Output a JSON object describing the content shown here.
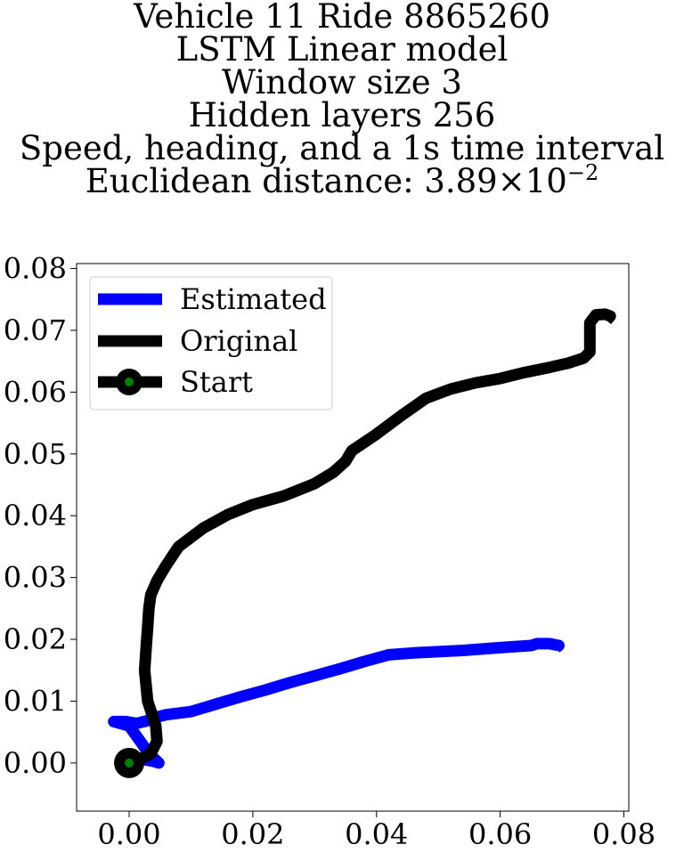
{
  "chart_data": {
    "type": "line",
    "title_lines": [
      "Vehicle 11 Ride 8865260",
      "LSTM Linear model",
      "Window size 3",
      "Hidden layers 256",
      "Speed, heading, and a 1s time interval"
    ],
    "title_distance": {
      "prefix": "Euclidean distance: ",
      "mantissa": "3.89",
      "times": "×",
      "base": "10",
      "exponent": "−2"
    },
    "xlabel": "",
    "ylabel": "",
    "xlim": [
      -0.0085,
      0.0808
    ],
    "ylim": [
      -0.0078,
      0.0808
    ],
    "xticks": [
      0.0,
      0.02,
      0.04,
      0.06,
      0.08
    ],
    "xtick_labels": [
      "0.00",
      "0.02",
      "0.04",
      "0.06",
      "0.08"
    ],
    "yticks": [
      0.0,
      0.01,
      0.02,
      0.03,
      0.04,
      0.05,
      0.06,
      0.07,
      0.08
    ],
    "ytick_labels": [
      "0.00",
      "0.01",
      "0.02",
      "0.03",
      "0.04",
      "0.05",
      "0.06",
      "0.07",
      "0.08"
    ],
    "grid": false,
    "legend_position": "top-left",
    "series": [
      {
        "name": "Estimated",
        "color": "#0000ff",
        "x": [
          0.0,
          0.0015,
          0.0038,
          0.0048,
          0.0032,
          0.0018,
          0.0,
          -0.0025,
          -0.0005,
          0.0012,
          0.0028,
          0.004,
          0.006,
          0.01,
          0.014,
          0.018,
          0.022,
          0.026,
          0.03,
          0.034,
          0.038,
          0.042,
          0.046,
          0.05,
          0.054,
          0.058,
          0.062,
          0.065,
          0.066,
          0.068,
          0.0695,
          0.069
        ],
        "y": [
          0.0,
          0.0007,
          0.0003,
          0.0,
          0.0015,
          0.0035,
          0.006,
          0.0067,
          0.0067,
          0.0064,
          0.0068,
          0.0073,
          0.0078,
          0.0083,
          0.0095,
          0.0107,
          0.0118,
          0.013,
          0.0141,
          0.0152,
          0.0164,
          0.0175,
          0.0178,
          0.018,
          0.0182,
          0.0185,
          0.0188,
          0.019,
          0.0193,
          0.0193,
          0.019,
          0.0186
        ]
      },
      {
        "name": "Original",
        "color": "#000000",
        "x": [
          0.0,
          0.0015,
          0.0035,
          0.0045,
          0.0043,
          0.003,
          0.0025,
          0.0028,
          0.003,
          0.0032,
          0.0035,
          0.0045,
          0.006,
          0.008,
          0.012,
          0.016,
          0.02,
          0.025,
          0.03,
          0.033,
          0.035,
          0.036,
          0.04,
          0.044,
          0.048,
          0.052,
          0.056,
          0.06,
          0.064,
          0.068,
          0.071,
          0.0735,
          0.0745,
          0.0745,
          0.0755,
          0.077,
          0.0778,
          0.0772
        ],
        "y": [
          0.0,
          0.0005,
          0.0015,
          0.0035,
          0.006,
          0.01,
          0.015,
          0.0195,
          0.022,
          0.025,
          0.0272,
          0.0295,
          0.032,
          0.035,
          0.038,
          0.0402,
          0.0418,
          0.0432,
          0.0452,
          0.047,
          0.0488,
          0.0505,
          0.0532,
          0.0562,
          0.059,
          0.0605,
          0.0615,
          0.0622,
          0.0632,
          0.064,
          0.0647,
          0.0655,
          0.0665,
          0.0712,
          0.0725,
          0.0726,
          0.0723,
          0.0716
        ]
      }
    ],
    "start_marker": {
      "name": "Start",
      "x": 0.0,
      "y": 0.0,
      "outer_color": "#000000",
      "inner_color": "#008000"
    }
  }
}
